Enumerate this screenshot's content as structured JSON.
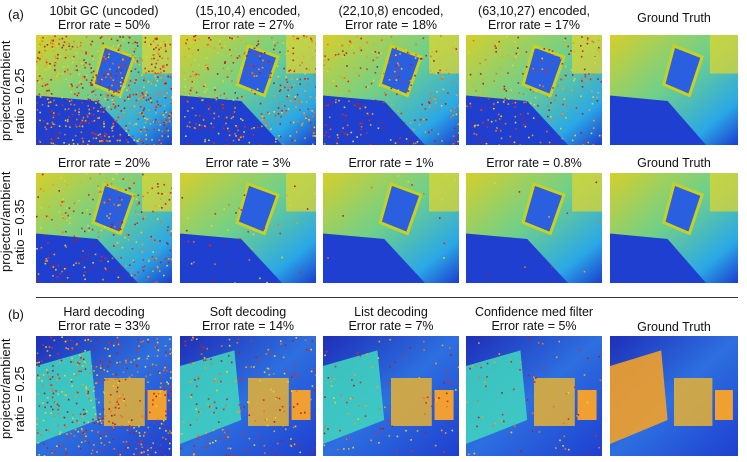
{
  "sections": [
    {
      "label": "(a)",
      "rows": [
        {
          "row_label": [
            "projector/ambient",
            "ratio = 0.25"
          ],
          "panels": [
            {
              "caption": [
                "10bit GC (uncoded)",
                "Error rate = 50%"
              ],
              "kind": "noisy",
              "error": 0.5
            },
            {
              "caption": [
                "(15,10,4) encoded,",
                "Error rate = 27%"
              ],
              "kind": "noisy",
              "error": 0.27
            },
            {
              "caption": [
                "(22,10,8) encoded,",
                "Error rate = 18%"
              ],
              "kind": "noisy",
              "error": 0.18
            },
            {
              "caption": [
                "(63,10,27) encoded,",
                "Error rate = 17%"
              ],
              "kind": "noisy",
              "error": 0.17
            },
            {
              "caption": [
                "Ground Truth"
              ],
              "kind": "gt",
              "error": 0
            }
          ]
        },
        {
          "row_label": [
            "projector/ambient",
            "ratio = 0.35"
          ],
          "panels": [
            {
              "caption": [
                "Error rate = 20%"
              ],
              "kind": "noisy",
              "error": 0.2
            },
            {
              "caption": [
                "Error rate = 3%"
              ],
              "kind": "noisy",
              "error": 0.03
            },
            {
              "caption": [
                "Error rate = 1%"
              ],
              "kind": "noisy",
              "error": 0.01
            },
            {
              "caption": [
                "Error rate = 0.8%"
              ],
              "kind": "noisy",
              "error": 0.008
            },
            {
              "caption": [
                "Ground Truth"
              ],
              "kind": "gt",
              "error": 0
            }
          ]
        }
      ]
    },
    {
      "label": "(b)",
      "rows": [
        {
          "row_label": [
            "projector/ambient",
            "ratio = 0.25"
          ],
          "panels": [
            {
              "caption": [
                "Hard decoding",
                "Error rate = 33%"
              ],
              "kind": "noisy2",
              "error": 0.33
            },
            {
              "caption": [
                "Soft decoding",
                "Error rate = 14%"
              ],
              "kind": "noisy2",
              "error": 0.14
            },
            {
              "caption": [
                "List decoding",
                "Error rate = 7%"
              ],
              "kind": "noisy2",
              "error": 0.07
            },
            {
              "caption": [
                "Confidence med filter",
                "Error rate = 5%"
              ],
              "kind": "noisy2",
              "error": 0.05
            },
            {
              "caption": [
                "Ground Truth"
              ],
              "kind": "gt2",
              "error": 0
            }
          ]
        }
      ]
    }
  ]
}
